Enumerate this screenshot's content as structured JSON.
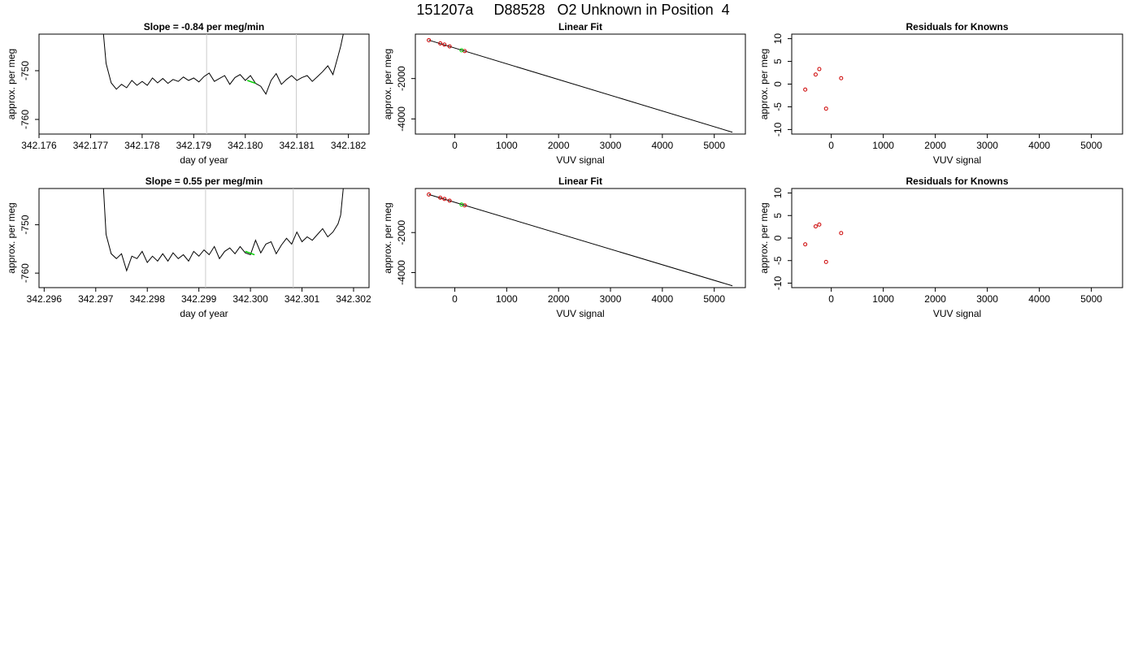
{
  "page": {
    "title": "151207a     D88528   O2 Unknown in Position  4"
  },
  "colors": {
    "trace": "#000000",
    "marker_line": "#cccccc",
    "green": "#00cc00",
    "red": "#cc0000"
  },
  "chart_data": [
    {
      "id": "time1",
      "type": "line",
      "title": "Slope =  -0.84  per meg/min",
      "xlabel": "day of year",
      "ylabel": "approx. per meg",
      "xlim": [
        342.176,
        342.1824
      ],
      "ylim": [
        -763,
        -742.5
      ],
      "xticks": [
        342.176,
        342.177,
        342.178,
        342.179,
        342.18,
        342.181,
        342.182
      ],
      "xtick_labels": [
        "342.176",
        "342.177",
        "342.178",
        "342.179",
        "342.180",
        "342.181",
        "342.182"
      ],
      "yticks": [
        -760,
        -750
      ],
      "ytick_labels": [
        "-760",
        "-750"
      ],
      "vlines": [
        342.17925,
        342.18099
      ],
      "green_segment": {
        "x": [
          342.18004,
          342.1802
        ],
        "y": [
          -752.0,
          -752.6
        ]
      },
      "x": [
        342.17725,
        342.1773,
        342.1774,
        342.1775,
        342.1776,
        342.1777,
        342.1778,
        342.1779,
        342.178,
        342.1781,
        342.1782,
        342.1783,
        342.1784,
        342.1785,
        342.1786,
        342.1787,
        342.1788,
        342.1789,
        342.179,
        342.1791,
        342.1792,
        342.1793,
        342.1794,
        342.1795,
        342.1796,
        342.1797,
        342.1798,
        342.1799,
        342.18,
        342.1801,
        342.1802,
        342.1803,
        342.1804,
        342.1805,
        342.1806,
        342.1807,
        342.1808,
        342.1809,
        342.181,
        342.1811,
        342.1812,
        342.1813,
        342.1814,
        342.1815,
        342.1816,
        342.1817,
        342.1818,
        342.18185,
        342.1819
      ],
      "y": [
        -742.5,
        -748.5,
        -752.5,
        -753.8,
        -752.8,
        -753.5,
        -752.0,
        -753.0,
        -752.2,
        -753.0,
        -751.5,
        -752.5,
        -751.6,
        -752.6,
        -751.8,
        -752.2,
        -751.3,
        -752.0,
        -751.5,
        -752.3,
        -751.2,
        -750.5,
        -752.2,
        -751.6,
        -751.0,
        -752.8,
        -751.4,
        -750.8,
        -752.0,
        -751.0,
        -752.6,
        -753.2,
        -754.8,
        -752.0,
        -750.6,
        -752.8,
        -751.8,
        -751.0,
        -752.0,
        -751.4,
        -751.0,
        -752.2,
        -751.2,
        -750.2,
        -749.0,
        -750.8,
        -747.0,
        -745.0,
        -742.5
      ]
    },
    {
      "id": "fit1",
      "type": "scatter",
      "title": "Linear Fit",
      "xlabel": "VUV signal",
      "ylabel": "approx. per meg",
      "xlim": [
        -760,
        5600
      ],
      "ylim": [
        -4750,
        200
      ],
      "xticks": [
        0,
        1000,
        2000,
        3000,
        4000,
        5000
      ],
      "xtick_labels": [
        "0",
        "1000",
        "2000",
        "3000",
        "4000",
        "5000"
      ],
      "yticks": [
        -4000,
        -2000
      ],
      "ytick_labels": [
        "-4000",
        "-2000"
      ],
      "fit_line": {
        "x": [
          -500,
          5350
        ],
        "y": [
          -100,
          -4660
        ]
      },
      "knowns": {
        "x": [
          -500,
          -280,
          -200,
          -100,
          190
        ],
        "y": [
          -100,
          -260,
          -320,
          -410,
          -640
        ]
      },
      "unknown": {
        "x": [
          130
        ],
        "y": [
          -600
        ]
      }
    },
    {
      "id": "res1",
      "type": "scatter",
      "title": "Residuals for Knowns",
      "xlabel": "VUV signal",
      "ylabel": "approx. per meg",
      "xlim": [
        -760,
        5600
      ],
      "ylim": [
        -11,
        11
      ],
      "xticks": [
        0,
        1000,
        2000,
        3000,
        4000,
        5000
      ],
      "xtick_labels": [
        "0",
        "1000",
        "2000",
        "3000",
        "4000",
        "5000"
      ],
      "yticks": [
        -10,
        -5,
        0,
        5,
        10
      ],
      "ytick_labels": [
        "-10",
        "-5",
        "0",
        "5",
        "10"
      ],
      "points": {
        "x": [
          -500,
          -300,
          -230,
          -100,
          190
        ],
        "y": [
          -1.2,
          2.1,
          3.3,
          -5.4,
          1.3
        ]
      }
    },
    {
      "id": "time2",
      "type": "line",
      "title": "Slope =  0.55  per meg/min",
      "xlabel": "day of year",
      "ylabel": "approx. per meg",
      "xlim": [
        342.2959,
        342.3023
      ],
      "ylim": [
        -763,
        -742.5
      ],
      "xticks": [
        342.296,
        342.297,
        342.298,
        342.299,
        342.3,
        342.301,
        342.302
      ],
      "xtick_labels": [
        "342.296",
        "342.297",
        "342.298",
        "342.299",
        "342.300",
        "342.301",
        "342.302"
      ],
      "yticks": [
        -760,
        -750
      ],
      "ytick_labels": [
        "-760",
        "-750"
      ],
      "vlines": [
        342.29913,
        342.30083
      ],
      "green_segment": {
        "x": [
          342.2999,
          342.30008
        ],
        "y": [
          -755.5,
          -756.2
        ]
      },
      "x": [
        342.29715,
        342.2972,
        342.2973,
        342.2974,
        342.2975,
        342.2976,
        342.2977,
        342.2978,
        342.2979,
        342.298,
        342.2981,
        342.2982,
        342.2983,
        342.2984,
        342.2985,
        342.2986,
        342.2987,
        342.2988,
        342.2989,
        342.299,
        342.2991,
        342.2992,
        342.2993,
        342.2994,
        342.2995,
        342.2996,
        342.2997,
        342.2998,
        342.2999,
        342.3,
        342.3001,
        342.3002,
        342.3003,
        342.3004,
        342.3005,
        342.3006,
        342.3007,
        342.3008,
        342.3009,
        342.301,
        342.3011,
        342.3012,
        342.3013,
        342.3014,
        342.3015,
        342.3016,
        342.3017,
        342.30175,
        342.3018
      ],
      "y": [
        -742.5,
        -752.0,
        -756.0,
        -757.0,
        -756.0,
        -759.5,
        -756.5,
        -757.0,
        -755.5,
        -757.8,
        -756.5,
        -757.5,
        -756.0,
        -757.5,
        -755.8,
        -757.0,
        -756.2,
        -757.5,
        -755.5,
        -756.5,
        -755.2,
        -756.2,
        -754.5,
        -757.0,
        -755.5,
        -754.8,
        -756.0,
        -754.5,
        -755.8,
        -756.2,
        -753.2,
        -755.8,
        -754.0,
        -753.5,
        -756.0,
        -754.2,
        -752.8,
        -754.0,
        -751.5,
        -753.5,
        -752.5,
        -753.2,
        -752.0,
        -750.8,
        -752.5,
        -751.5,
        -749.8,
        -748.0,
        -742.5
      ]
    },
    {
      "id": "fit2",
      "type": "scatter",
      "title": "Linear Fit",
      "xlabel": "VUV signal",
      "ylabel": "approx. per meg",
      "xlim": [
        -760,
        5600
      ],
      "ylim": [
        -4750,
        200
      ],
      "xticks": [
        0,
        1000,
        2000,
        3000,
        4000,
        5000
      ],
      "xtick_labels": [
        "0",
        "1000",
        "2000",
        "3000",
        "4000",
        "5000"
      ],
      "yticks": [
        -4000,
        -2000
      ],
      "ytick_labels": [
        "-4000",
        "-2000"
      ],
      "fit_line": {
        "x": [
          -500,
          5350
        ],
        "y": [
          -100,
          -4660
        ]
      },
      "knowns": {
        "x": [
          -500,
          -280,
          -200,
          -100,
          190
        ],
        "y": [
          -100,
          -260,
          -320,
          -410,
          -640
        ]
      },
      "unknown": {
        "x": [
          130
        ],
        "y": [
          -600
        ]
      }
    },
    {
      "id": "res2",
      "type": "scatter",
      "title": "Residuals for Knowns",
      "xlabel": "VUV signal",
      "ylabel": "approx. per meg",
      "xlim": [
        -760,
        5600
      ],
      "ylim": [
        -11,
        11
      ],
      "xticks": [
        0,
        1000,
        2000,
        3000,
        4000,
        5000
      ],
      "xtick_labels": [
        "0",
        "1000",
        "2000",
        "3000",
        "4000",
        "5000"
      ],
      "yticks": [
        -10,
        -5,
        0,
        5,
        10
      ],
      "ytick_labels": [
        "-10",
        "-5",
        "0",
        "5",
        "10"
      ],
      "points": {
        "x": [
          -500,
          -300,
          -230,
          -100,
          190
        ],
        "y": [
          -1.4,
          2.6,
          3.0,
          -5.3,
          1.1
        ]
      }
    }
  ]
}
